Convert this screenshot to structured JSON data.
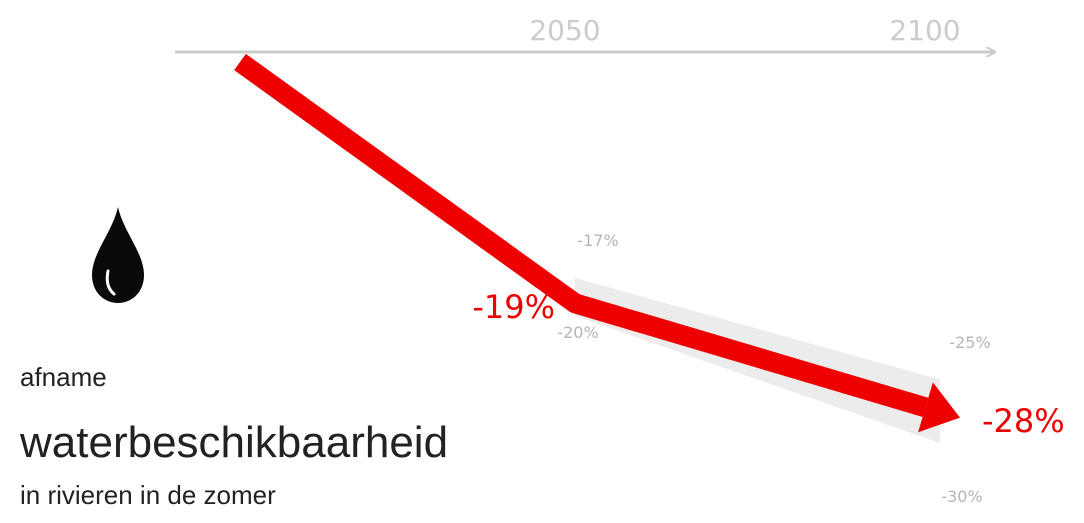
{
  "caption": {
    "line1": "afname",
    "line2": "waterbeschikbaarheid",
    "line3": "in rivieren in de zomer"
  },
  "icon": "water-drop-icon",
  "colors": {
    "line": "#ee0000",
    "band": "#ececec",
    "axis": "#cccccc",
    "range_label": "#b5b5b5",
    "caption": "#222222"
  },
  "chart_data": {
    "type": "line",
    "x": [
      "2000",
      "2050",
      "2100"
    ],
    "xticks": [
      "2050",
      "2100"
    ],
    "series": [
      {
        "values": [
          0,
          -19,
          -28
        ]
      }
    ],
    "range": {
      "upper": [
        0,
        -17,
        -25
      ],
      "lower": [
        0,
        -20,
        -30
      ]
    },
    "labels": {
      "value_2050": "-19%",
      "value_2100": "-28%",
      "upper_2050": "-17%",
      "lower_2050": "-20%",
      "upper_2100": "-25%",
      "lower_2100": "-30%"
    }
  }
}
